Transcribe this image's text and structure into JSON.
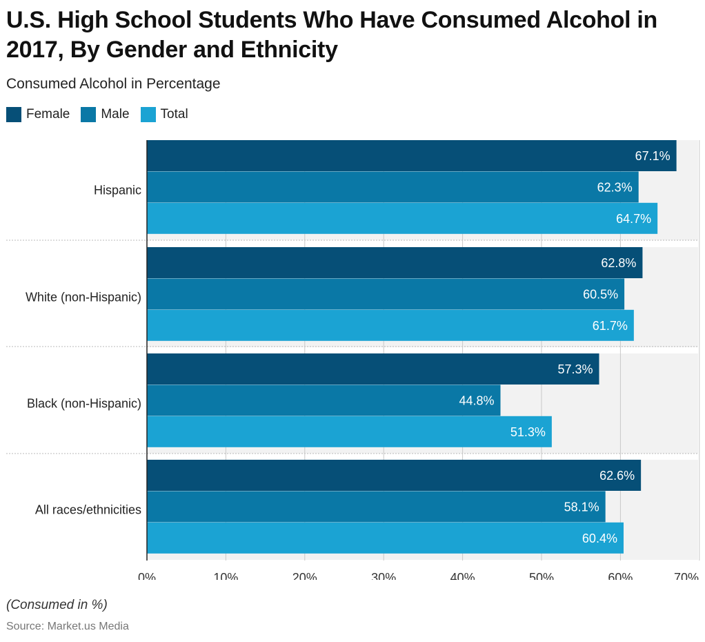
{
  "title": "U.S. High School Students Who Have Consumed Alcohol in 2017, By Gender and Ethnicity",
  "subtitle": "Consumed Alcohol in Percentage",
  "footnote": "(Consumed in %)",
  "source": "Source: Market.us Media",
  "colors": {
    "female": "#064f77",
    "male": "#0a78a6",
    "total": "#1ba3d3",
    "band": "#f2f2f2",
    "grid": "#c8c8c8"
  },
  "chart_data": {
    "type": "bar",
    "orientation": "horizontal",
    "categories": [
      "Hispanic",
      "White (non-Hispanic)",
      "Black (non-Hispanic)",
      "All races/ethnicities"
    ],
    "series": [
      {
        "name": "Female",
        "values": [
          67.1,
          62.8,
          57.3,
          62.6
        ]
      },
      {
        "name": "Male",
        "values": [
          62.3,
          60.5,
          44.8,
          58.1
        ]
      },
      {
        "name": "Total",
        "values": [
          64.7,
          61.7,
          51.3,
          60.4
        ]
      }
    ],
    "xlim": [
      0,
      70
    ],
    "xticks": [
      0,
      10,
      20,
      30,
      40,
      50,
      60,
      70
    ],
    "tick_labels": [
      "0%",
      "10%",
      "20%",
      "30%",
      "40%",
      "50%",
      "60%",
      "70%"
    ],
    "value_suffix": "%",
    "legend_position": "top-left",
    "grid": true
  }
}
